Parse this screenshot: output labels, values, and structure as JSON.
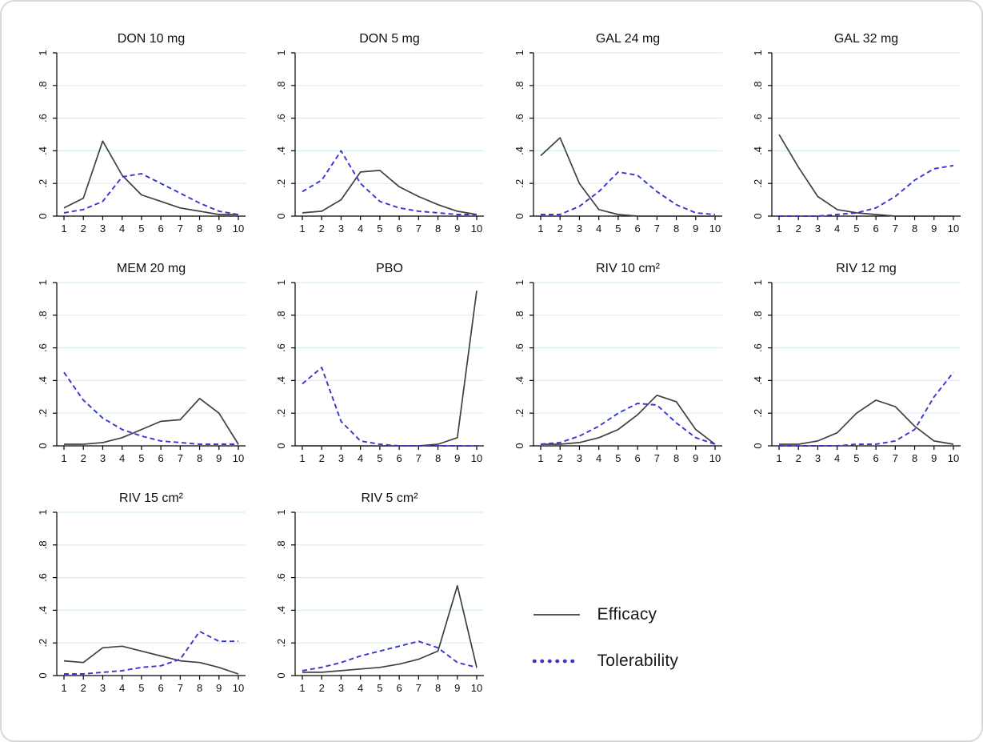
{
  "figure": {
    "legend": {
      "items": [
        {
          "label": "Efficacy",
          "line_style": "solid",
          "color": "#404040"
        },
        {
          "label": "Tolerability",
          "line_style": "dotted",
          "color": "#3b35cc"
        }
      ]
    },
    "colors": {
      "efficacy": "#404040",
      "tolerability": "#3b35cc",
      "gridline": "#d8eef0",
      "axis": "#000000",
      "text": "#111111"
    },
    "axes": {
      "x_ticks": [
        1,
        2,
        3,
        4,
        5,
        6,
        7,
        8,
        9,
        10
      ],
      "y_ticks": [
        0,
        0.2,
        0.4,
        0.6,
        0.8,
        1
      ],
      "y_tick_labels": [
        "0",
        ".2",
        ".4",
        ".6",
        ".8",
        "1"
      ],
      "xlim": [
        1,
        10
      ],
      "ylim": [
        0,
        1
      ],
      "grid": "horizontal"
    }
  },
  "chart_data": [
    {
      "type": "line",
      "title": "DON 10 mg",
      "x": [
        1,
        2,
        3,
        4,
        5,
        6,
        7,
        8,
        9,
        10
      ],
      "ylim": [
        0,
        1
      ],
      "series": [
        {
          "name": "Efficacy",
          "style": "solid",
          "values": [
            0.05,
            0.11,
            0.46,
            0.25,
            0.13,
            0.09,
            0.05,
            0.03,
            0.01,
            0.01
          ]
        },
        {
          "name": "Tolerability",
          "style": "dashed",
          "values": [
            0.02,
            0.04,
            0.09,
            0.24,
            0.26,
            0.2,
            0.14,
            0.08,
            0.03,
            0.01
          ]
        }
      ]
    },
    {
      "type": "line",
      "title": "DON 5 mg",
      "x": [
        1,
        2,
        3,
        4,
        5,
        6,
        7,
        8,
        9,
        10
      ],
      "ylim": [
        0,
        1
      ],
      "series": [
        {
          "name": "Efficacy",
          "style": "solid",
          "values": [
            0.02,
            0.03,
            0.1,
            0.27,
            0.28,
            0.18,
            0.12,
            0.07,
            0.03,
            0.01
          ]
        },
        {
          "name": "Tolerability",
          "style": "dashed",
          "values": [
            0.15,
            0.22,
            0.4,
            0.2,
            0.09,
            0.05,
            0.03,
            0.02,
            0.01,
            0.01
          ]
        }
      ]
    },
    {
      "type": "line",
      "title": "GAL 24 mg",
      "x": [
        1,
        2,
        3,
        4,
        5,
        6,
        7,
        8,
        9,
        10
      ],
      "ylim": [
        0,
        1
      ],
      "series": [
        {
          "name": "Efficacy",
          "style": "solid",
          "values": [
            0.37,
            0.48,
            0.2,
            0.04,
            0.01,
            0.0,
            0.0,
            0.0,
            0.0,
            0.0
          ]
        },
        {
          "name": "Tolerability",
          "style": "dashed",
          "values": [
            0.01,
            0.01,
            0.06,
            0.15,
            0.27,
            0.25,
            0.15,
            0.07,
            0.02,
            0.01
          ]
        }
      ]
    },
    {
      "type": "line",
      "title": "GAL 32 mg",
      "x": [
        1,
        2,
        3,
        4,
        5,
        6,
        7,
        8,
        9,
        10
      ],
      "ylim": [
        0,
        1
      ],
      "series": [
        {
          "name": "Efficacy",
          "style": "solid",
          "values": [
            0.5,
            0.3,
            0.12,
            0.04,
            0.02,
            0.01,
            0.0,
            0.0,
            0.0,
            0.0
          ]
        },
        {
          "name": "Tolerability",
          "style": "dashed",
          "values": [
            0.0,
            0.0,
            0.0,
            0.01,
            0.02,
            0.05,
            0.12,
            0.22,
            0.29,
            0.31
          ]
        }
      ]
    },
    {
      "type": "line",
      "title": "MEM 20 mg",
      "x": [
        1,
        2,
        3,
        4,
        5,
        6,
        7,
        8,
        9,
        10
      ],
      "ylim": [
        0,
        1
      ],
      "series": [
        {
          "name": "Efficacy",
          "style": "solid",
          "values": [
            0.01,
            0.01,
            0.02,
            0.05,
            0.1,
            0.15,
            0.16,
            0.29,
            0.2,
            0.01
          ]
        },
        {
          "name": "Tolerability",
          "style": "dashed",
          "values": [
            0.45,
            0.28,
            0.17,
            0.1,
            0.06,
            0.03,
            0.02,
            0.01,
            0.01,
            0.01
          ]
        }
      ]
    },
    {
      "type": "line",
      "title": "PBO",
      "x": [
        1,
        2,
        3,
        4,
        5,
        6,
        7,
        8,
        9,
        10
      ],
      "ylim": [
        0,
        1
      ],
      "series": [
        {
          "name": "Efficacy",
          "style": "solid",
          "values": [
            0.0,
            0.0,
            0.0,
            0.0,
            0.0,
            0.0,
            0.0,
            0.01,
            0.05,
            0.95
          ]
        },
        {
          "name": "Tolerability",
          "style": "dashed",
          "values": [
            0.38,
            0.48,
            0.15,
            0.03,
            0.01,
            0.0,
            0.0,
            0.0,
            0.0,
            0.0
          ]
        }
      ]
    },
    {
      "type": "line",
      "title": "RIV 10 cm²",
      "x": [
        1,
        2,
        3,
        4,
        5,
        6,
        7,
        8,
        9,
        10
      ],
      "ylim": [
        0,
        1
      ],
      "series": [
        {
          "name": "Efficacy",
          "style": "solid",
          "values": [
            0.01,
            0.01,
            0.02,
            0.05,
            0.1,
            0.19,
            0.31,
            0.27,
            0.1,
            0.01
          ]
        },
        {
          "name": "Tolerability",
          "style": "dashed",
          "values": [
            0.01,
            0.02,
            0.06,
            0.12,
            0.2,
            0.26,
            0.25,
            0.14,
            0.05,
            0.01
          ]
        }
      ]
    },
    {
      "type": "line",
      "title": "RIV 12 mg",
      "x": [
        1,
        2,
        3,
        4,
        5,
        6,
        7,
        8,
        9,
        10
      ],
      "ylim": [
        0,
        1
      ],
      "series": [
        {
          "name": "Efficacy",
          "style": "solid",
          "values": [
            0.01,
            0.01,
            0.03,
            0.08,
            0.2,
            0.28,
            0.24,
            0.12,
            0.03,
            0.01
          ]
        },
        {
          "name": "Tolerability",
          "style": "dashed",
          "values": [
            0.0,
            0.0,
            0.0,
            0.0,
            0.01,
            0.01,
            0.03,
            0.1,
            0.3,
            0.45
          ]
        }
      ]
    },
    {
      "type": "line",
      "title": "RIV 15 cm²",
      "x": [
        1,
        2,
        3,
        4,
        5,
        6,
        7,
        8,
        9,
        10
      ],
      "ylim": [
        0,
        1
      ],
      "series": [
        {
          "name": "Efficacy",
          "style": "solid",
          "values": [
            0.09,
            0.08,
            0.17,
            0.18,
            0.15,
            0.12,
            0.09,
            0.08,
            0.05,
            0.01
          ]
        },
        {
          "name": "Tolerability",
          "style": "dashed",
          "values": [
            0.01,
            0.01,
            0.02,
            0.03,
            0.05,
            0.06,
            0.1,
            0.27,
            0.21,
            0.21
          ]
        }
      ]
    },
    {
      "type": "line",
      "title": "RIV 5 cm²",
      "x": [
        1,
        2,
        3,
        4,
        5,
        6,
        7,
        8,
        9,
        10
      ],
      "ylim": [
        0,
        1
      ],
      "series": [
        {
          "name": "Efficacy",
          "style": "solid",
          "values": [
            0.02,
            0.02,
            0.03,
            0.04,
            0.05,
            0.07,
            0.1,
            0.15,
            0.55,
            0.05
          ]
        },
        {
          "name": "Tolerability",
          "style": "dashed",
          "values": [
            0.03,
            0.05,
            0.08,
            0.12,
            0.15,
            0.18,
            0.21,
            0.17,
            0.08,
            0.05
          ]
        }
      ]
    }
  ]
}
